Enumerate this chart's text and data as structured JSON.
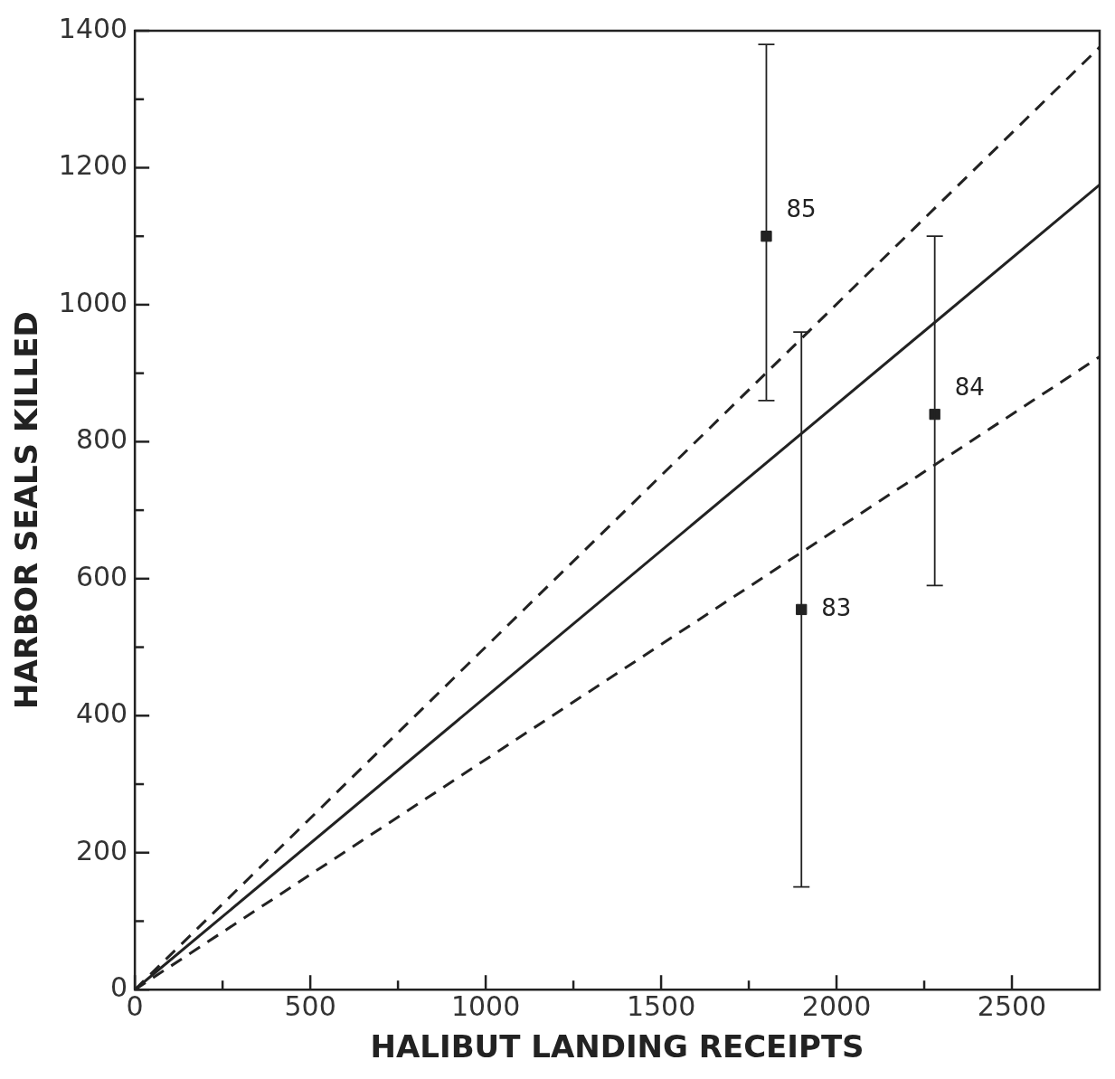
{
  "chart_data": {
    "type": "scatter",
    "xlabel": "HALIBUT LANDING RECEIPTS",
    "ylabel": "HARBOR SEALS KILLED",
    "xlim": [
      0,
      2750
    ],
    "ylim": [
      0,
      1400
    ],
    "xticks": [
      0,
      {
        "value": 250,
        "label": null
      },
      500,
      {
        "value": 750,
        "label": null
      },
      1000,
      {
        "value": 1250,
        "label": null
      },
      1500,
      {
        "value": 1750,
        "label": null
      },
      2000,
      {
        "value": 2250,
        "label": null
      },
      2500
    ],
    "yticks": [
      0,
      {
        "value": 100,
        "label": null
      },
      200,
      {
        "value": 300,
        "label": null
      },
      400,
      {
        "value": 500,
        "label": null
      },
      600,
      {
        "value": 700,
        "label": null
      },
      800,
      {
        "value": 900,
        "label": null
      },
      1000,
      {
        "value": 1100,
        "label": null
      },
      1200,
      {
        "value": 1300,
        "label": null
      },
      1400
    ],
    "grid": false,
    "legend": false,
    "marker": "square",
    "series": [
      {
        "type": "scatter",
        "color": "#222222",
        "x": [
          1800,
          1900,
          2280
        ],
        "values": [
          1100,
          555,
          840
        ],
        "errors": [
          [
            860,
            1380
          ],
          [
            150,
            960
          ],
          [
            590,
            1100
          ]
        ]
      },
      {
        "type": "line",
        "color": "#222222",
        "line_style": "solid",
        "marker": "none",
        "x": [
          0,
          2750
        ],
        "values": [
          0,
          1175
        ]
      },
      {
        "type": "line",
        "color": "#222222",
        "line_style": "dashed",
        "marker": "none",
        "x": [
          0,
          2750
        ],
        "values": [
          0,
          1376
        ]
      },
      {
        "type": "line",
        "color": "#222222",
        "line_style": "dashed",
        "marker": "none",
        "x": [
          0,
          2750
        ],
        "values": [
          0,
          924
        ]
      }
    ],
    "annotations": [
      {
        "text": "85",
        "x": 1800,
        "y": 1100
      },
      {
        "text": "83",
        "x": 1900,
        "y": 555
      },
      {
        "text": "84",
        "x": 2280,
        "y": 840
      }
    ]
  }
}
